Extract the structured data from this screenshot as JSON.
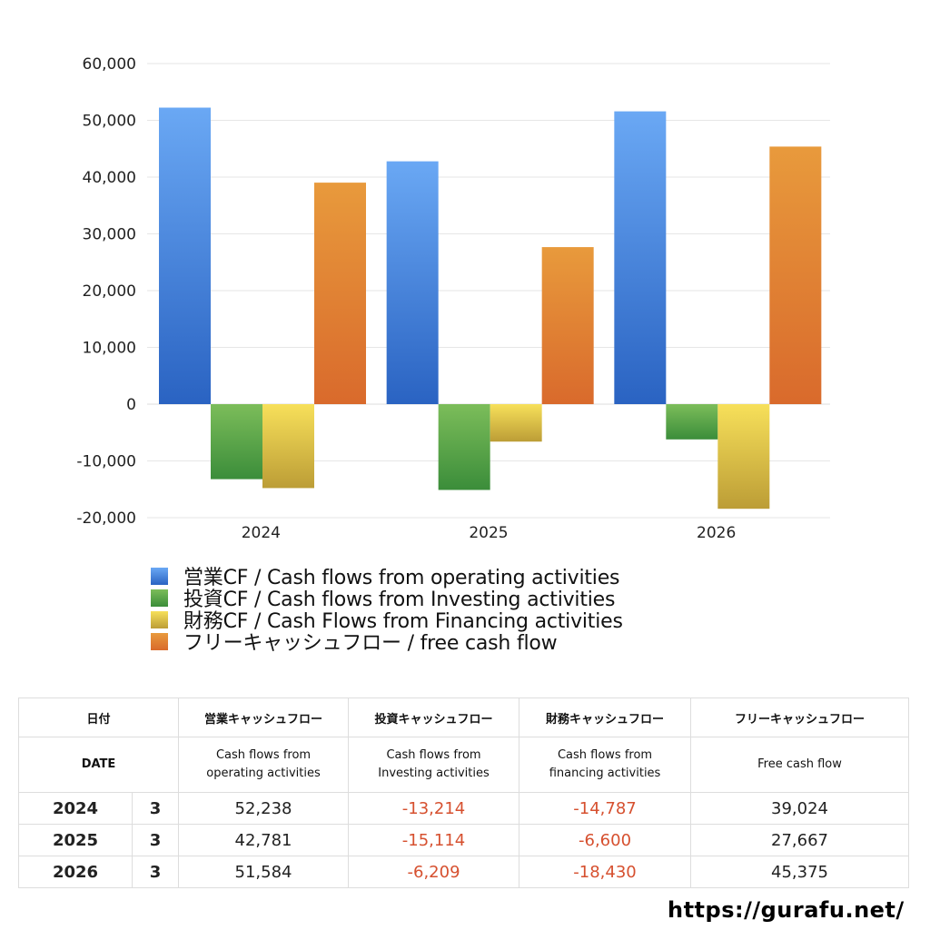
{
  "chart_data": {
    "type": "bar",
    "categories": [
      "2024",
      "2025",
      "2026"
    ],
    "ylim": [
      -20000,
      60000
    ],
    "yticks": [
      60000,
      50000,
      40000,
      30000,
      20000,
      10000,
      0,
      -10000,
      -20000
    ],
    "ytick_labels": [
      "60,000",
      "50,000",
      "40,000",
      "30,000",
      "20,000",
      "10,000",
      "0",
      "-10,000",
      "-20,000"
    ],
    "grid": true,
    "legend_position": "bottom",
    "series": [
      {
        "name": "営業CF / Cash flows from operating activities",
        "values": [
          52238,
          42781,
          51584
        ],
        "color_top": "#6aa8f4",
        "color_bottom": "#2a63c2"
      },
      {
        "name": "投資CF / Cash flows from Investing activities",
        "values": [
          -13214,
          -15114,
          -6209
        ],
        "color_top": "#7cbd5a",
        "color_bottom": "#3b8d3a"
      },
      {
        "name": "財務CF / Cash Flows from Financing activities",
        "values": [
          -14787,
          -6600,
          -18430
        ],
        "color_top": "#f7e05a",
        "color_bottom": "#bc9d36"
      },
      {
        "name": "フリーキャッシュフロー / free cash flow",
        "values": [
          39024,
          27667,
          45375
        ],
        "color_top": "#e89a3c",
        "color_bottom": "#d96a2c"
      }
    ]
  },
  "table": {
    "header_jp": [
      "日付",
      "営業キャッシュフロー",
      "投資キャッシュフロー",
      "財務キャッシュフロー",
      "フリーキャッシュフロー"
    ],
    "header_en": {
      "date": "DATE",
      "operating": [
        "Cash flows from",
        "operating activities"
      ],
      "investing": [
        "Cash flows from",
        "Investing activities"
      ],
      "financing": [
        "Cash flows from",
        "financing activities"
      ],
      "free": "Free cash flow"
    },
    "rows": [
      {
        "year": "2024",
        "month": "3",
        "operating": "52,238",
        "investing": "-13,214",
        "financing": "-14,787",
        "free": "39,024"
      },
      {
        "year": "2025",
        "month": "3",
        "operating": "42,781",
        "investing": "-15,114",
        "financing": "-6,600",
        "free": "27,667"
      },
      {
        "year": "2026",
        "month": "3",
        "operating": "51,584",
        "investing": "-6,209",
        "financing": "-18,430",
        "free": "45,375"
      }
    ],
    "negative_color": "#d6502f"
  },
  "site_url": "https://gurafu.net/"
}
